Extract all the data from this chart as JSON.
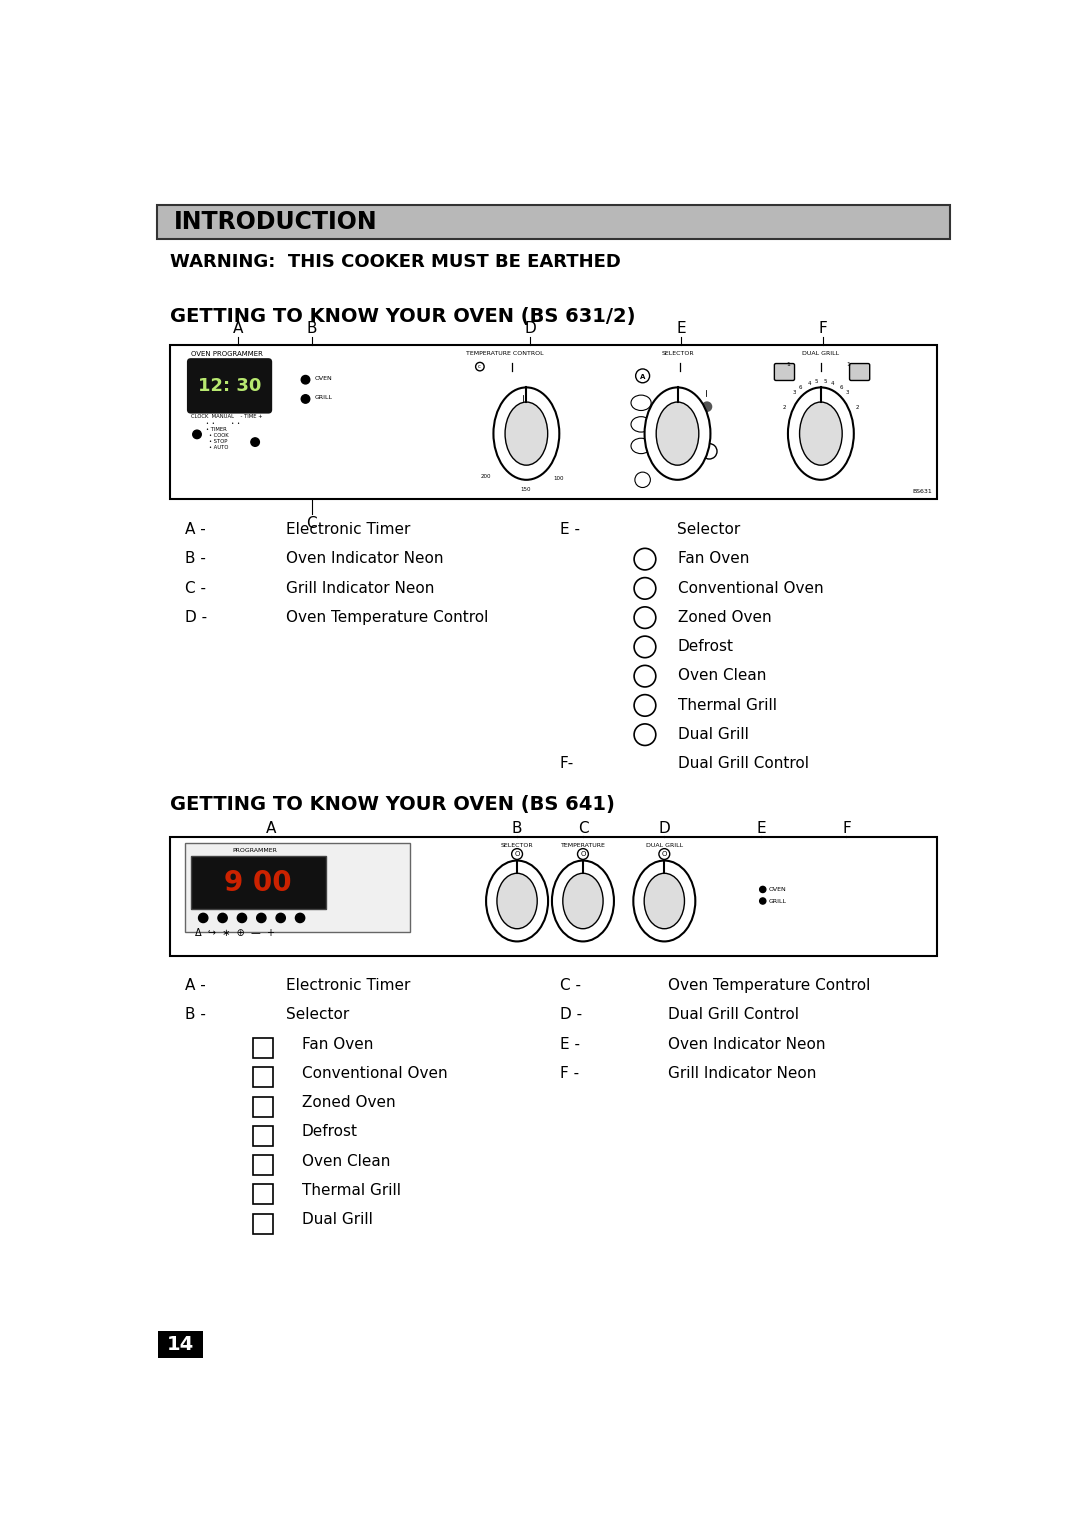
{
  "page_bg": "#ffffff",
  "header_bg": "#b8b8b8",
  "header_text": "INTRODUCTION",
  "warning_text": "WARNING:  THIS COOKER MUST BE EARTHED",
  "section1_title": "GETTING TO KNOW YOUR OVEN (BS 631/2)",
  "section2_title": "GETTING TO KNOW YOUR OVEN (BS 641)",
  "bs631_left": [
    [
      "A -",
      "Electronic Timer"
    ],
    [
      "B -",
      "Oven Indicator Neon"
    ],
    [
      "C -",
      "Grill Indicator Neon"
    ],
    [
      "D -",
      "Oven Temperature Control"
    ]
  ],
  "bs631_e_header": [
    "E -",
    "Selector"
  ],
  "bs631_e_items": [
    "Fan Oven",
    "Conventional Oven",
    "Zoned Oven",
    "Defrost",
    "Oven Clean",
    "Thermal Grill",
    "Dual Grill"
  ],
  "bs631_f": [
    "F-",
    "Dual Grill Control"
  ],
  "bs641_left": [
    [
      "A -",
      "Electronic Timer"
    ],
    [
      "B -",
      "Selector"
    ]
  ],
  "bs641_selector_items": [
    "Fan Oven",
    "Conventional Oven",
    "Zoned Oven",
    "Defrost",
    "Oven Clean",
    "Thermal Grill",
    "Dual Grill"
  ],
  "bs641_right": [
    [
      "C -",
      "Oven Temperature Control"
    ],
    [
      "D -",
      "Dual Grill Control"
    ],
    [
      "E -",
      "Oven Indicator Neon"
    ],
    [
      "F -",
      "Grill Indicator Neon"
    ]
  ],
  "page_number": "14"
}
